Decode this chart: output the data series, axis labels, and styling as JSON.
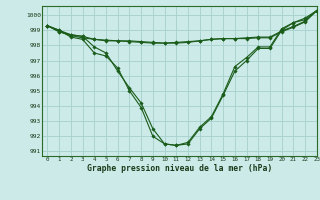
{
  "title": "Graphe pression niveau de la mer (hPa)",
  "bg_color": "#cceae7",
  "grid_color": "#aad4d0",
  "line_color": "#1a5c1a",
  "xlim": [
    -0.5,
    23
  ],
  "ylim": [
    990.7,
    1000.6
  ],
  "yticks": [
    991,
    992,
    993,
    994,
    995,
    996,
    997,
    998,
    999,
    1000
  ],
  "xticks": [
    0,
    1,
    2,
    3,
    4,
    5,
    6,
    7,
    8,
    9,
    10,
    11,
    12,
    13,
    14,
    15,
    16,
    17,
    18,
    19,
    20,
    21,
    22,
    23
  ],
  "series1": [
    999.3,
    999.0,
    998.7,
    998.6,
    997.9,
    997.5,
    996.3,
    995.2,
    994.2,
    992.5,
    991.5,
    991.4,
    991.5,
    992.5,
    993.2,
    994.7,
    996.3,
    997.0,
    997.8,
    997.8,
    999.0,
    999.5,
    999.7,
    1000.3
  ],
  "series2": [
    999.3,
    998.9,
    998.7,
    998.6,
    998.4,
    998.3,
    998.3,
    998.25,
    998.2,
    998.15,
    998.15,
    998.15,
    998.2,
    998.3,
    998.4,
    998.45,
    998.45,
    998.45,
    998.5,
    998.5,
    998.9,
    999.2,
    999.55,
    1000.3
  ],
  "series3": [
    999.3,
    998.9,
    998.65,
    998.5,
    998.4,
    998.35,
    998.3,
    998.3,
    998.25,
    998.2,
    998.15,
    998.2,
    998.25,
    998.3,
    998.4,
    998.45,
    998.45,
    998.5,
    998.55,
    998.55,
    998.95,
    999.25,
    999.6,
    1000.3
  ],
  "series4": [
    999.3,
    999.0,
    998.55,
    998.4,
    997.5,
    997.3,
    996.5,
    995.0,
    993.9,
    992.0,
    991.5,
    991.4,
    991.6,
    992.6,
    993.3,
    994.8,
    996.6,
    997.2,
    997.9,
    997.9,
    999.1,
    999.5,
    999.8,
    1000.3
  ]
}
